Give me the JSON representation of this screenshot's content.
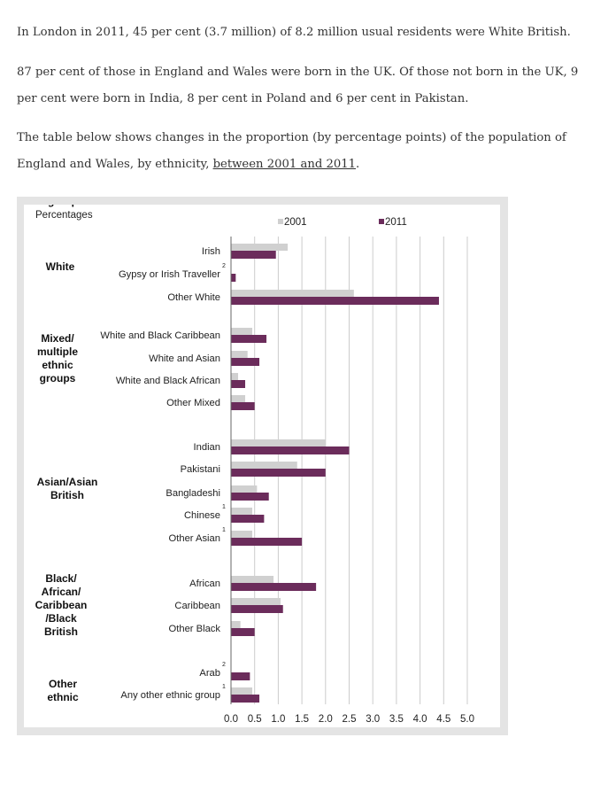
{
  "paragraphs": {
    "p1": "In London in 2011, 45 per cent (3.7 million) of 8.2 million usual residents were White British.",
    "p2": "87 per cent of those in England and Wales were born in the UK. Of those not born in the UK, 9 per cent were born in India, 8 per cent in Poland and 6 per cent in Pakistan.",
    "p3_text": "The table below shows changes in the proportion (by percentage points) of the population of England and Wales, by ethnicity, ",
    "p3_link": "between 2001 and 2011",
    "p3_end": "."
  },
  "chart_data": {
    "type": "bar",
    "orientation": "horizontal",
    "title": "",
    "xlabel": "Percentages",
    "ylabel": "",
    "xlim": [
      0,
      5
    ],
    "xticks": [
      "0.0",
      "0.5",
      "1.0",
      "1.5",
      "2.0",
      "2.5",
      "3.0",
      "3.5",
      "4.0",
      "4.5",
      "5.0"
    ],
    "grid": "vertical",
    "legend_position": "top",
    "colors": {
      "2001": "#d0d0d0",
      "2011": "#6b2c5b"
    },
    "groups": [
      {
        "label": "White",
        "categories": [
          "Irish",
          "Gypsy or Irish Traveller",
          "Other White"
        ]
      },
      {
        "label": "Mixed/ multiple ethnic groups",
        "categories": [
          "White and Black Caribbean",
          "White and Asian",
          "White and Black African",
          "Other Mixed"
        ]
      },
      {
        "label": "Asian/Asian British",
        "categories": [
          "Indian",
          "Pakistani",
          "Bangladeshi",
          "Chinese",
          "Other Asian"
        ]
      },
      {
        "label": "Black/ African/ Caribbean /Black British",
        "categories": [
          "African",
          "Caribbean",
          "Other Black"
        ]
      },
      {
        "label": "Other ethnic group",
        "categories": [
          "Arab",
          "Any other ethnic group"
        ]
      }
    ],
    "categories": [
      "Irish",
      "Gypsy or Irish Traveller",
      "Other White",
      "White and Black Caribbean",
      "White and Asian",
      "White and Black African",
      "Other Mixed",
      "Indian",
      "Pakistani",
      "Bangladeshi",
      "Chinese",
      "Other Asian",
      "African",
      "Caribbean",
      "Other Black",
      "Arab",
      "Any other ethnic group"
    ],
    "notes": [
      "",
      "2",
      "",
      "",
      "",
      "",
      "",
      "",
      "",
      "",
      "1",
      "1",
      "",
      "",
      "",
      "2",
      "1"
    ],
    "series": [
      {
        "name": "2001",
        "values": [
          1.2,
          null,
          2.6,
          0.45,
          0.35,
          0.15,
          0.3,
          2.0,
          1.4,
          0.55,
          0.45,
          0.45,
          0.9,
          1.05,
          0.2,
          null,
          0.45
        ]
      },
      {
        "name": "2011",
        "values": [
          0.95,
          0.1,
          4.4,
          0.75,
          0.6,
          0.3,
          0.5,
          2.5,
          2.0,
          0.8,
          0.7,
          1.5,
          1.8,
          1.1,
          0.5,
          0.4,
          0.6
        ]
      }
    ]
  }
}
